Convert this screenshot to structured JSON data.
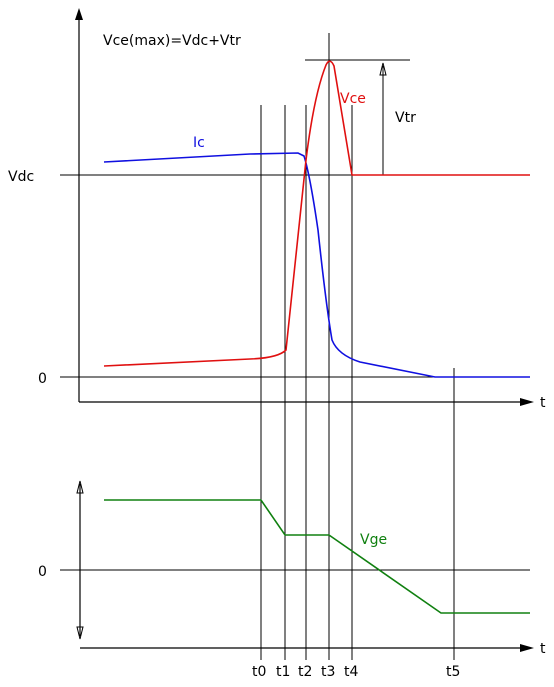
{
  "formula": "Vce(max)=Vdc+Vtr",
  "labels": {
    "vdc": "Vdc",
    "zero_top": "0",
    "zero_bottom": "0",
    "t_axis_top": "t",
    "t_axis_bottom": "t",
    "ic": "Ic",
    "vce": "Vce",
    "vtr": "Vtr",
    "vge": "Vge"
  },
  "time_markers": [
    "t0",
    "t1",
    "t2",
    "t3",
    "t4",
    "t5"
  ],
  "colors": {
    "ic": "#1010e0",
    "vce": "#e01010",
    "vge": "#108010",
    "axis": "#000000"
  }
}
